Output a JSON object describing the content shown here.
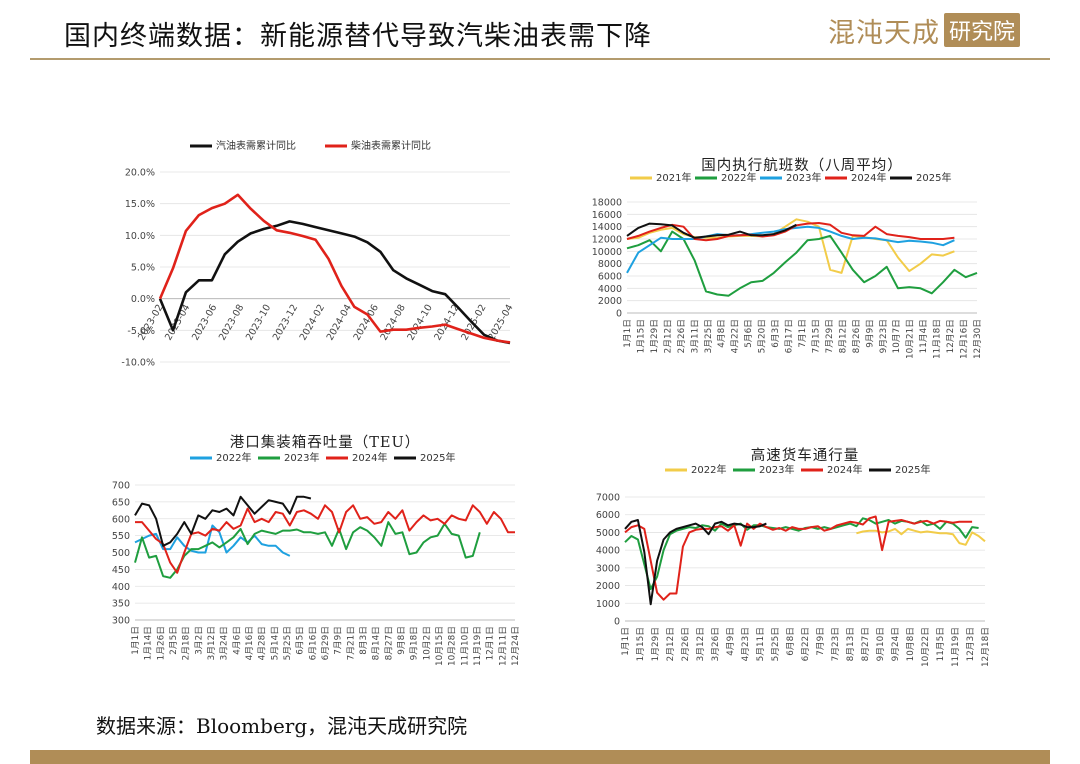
{
  "header": {
    "title": "国内终端数据：新能源替代导致汽柴油表需下降",
    "logo_text": "混沌天成",
    "logo_box_text": "研究院"
  },
  "source": "数据来源：Bloomberg，混沌天成研究院",
  "colors": {
    "gold": "#b08d57",
    "black": "#111111",
    "red": "#e0221a",
    "green": "#1f9e3f",
    "blue": "#1ea1e0",
    "yellow": "#f2cc49"
  },
  "chart_data": [
    {
      "type": "line",
      "title": "",
      "x": [
        "2023-02",
        "2023-03",
        "2023-04",
        "2023-05",
        "2023-06",
        "2023-07",
        "2023-08",
        "2023-09",
        "2023-10",
        "2023-11",
        "2023-12",
        "2024-01",
        "2024-02",
        "2024-03",
        "2024-04",
        "2024-05",
        "2024-06",
        "2024-07",
        "2024-08",
        "2024-09",
        "2024-10",
        "2024-11",
        "2024-12",
        "2025-01",
        "2025-02",
        "2025-03",
        "2025-04",
        "2025-05"
      ],
      "x_tick_labels": [
        "2023-02",
        "2023-04",
        "2023-06",
        "2023-08",
        "2023-10",
        "2023-12",
        "2024-02",
        "2024-04",
        "2024-06",
        "2024-08",
        "2024-10",
        "2024-12",
        "2025-02",
        "2025-04"
      ],
      "series": [
        {
          "name": "汽油表需累计同比",
          "color": "#111111",
          "values": [
            0.0,
            -5.0,
            1.0,
            2.9,
            2.9,
            7.0,
            9.0,
            10.3,
            11.0,
            11.5,
            12.2,
            11.8,
            11.3,
            10.8,
            10.3,
            9.8,
            8.9,
            7.4,
            4.5,
            3.2,
            2.2,
            1.2,
            0.7,
            -1.4,
            -3.6,
            -5.7,
            -6.6,
            -7.0
          ]
        },
        {
          "name": "柴油表需累计同比",
          "color": "#e0221a",
          "values": [
            0.0,
            4.8,
            10.7,
            13.2,
            14.3,
            15.0,
            16.4,
            14.2,
            12.3,
            10.8,
            10.4,
            9.9,
            9.3,
            6.3,
            2.0,
            -1.3,
            -2.5,
            -5.2,
            -4.9,
            -4.9,
            -4.6,
            -4.4,
            -4.1,
            -4.8,
            -5.5,
            -6.2,
            -6.6,
            -6.9
          ]
        }
      ],
      "y_tick_labels": [
        "20.0%",
        "15.0%",
        "10.0%",
        "5.0%",
        "0.0%",
        "-5.0%",
        "-10.0%"
      ],
      "ylim": [
        -10,
        20
      ],
      "legend": "top"
    },
    {
      "type": "line",
      "title": "国内执行航班数（八周平均）",
      "x_tick_labels": [
        "1月1日",
        "1月15日",
        "1月29日",
        "2月12日",
        "2月26日",
        "3月11日",
        "3月25日",
        "4月8日",
        "4月22日",
        "5月6日",
        "5月20日",
        "6月3日",
        "6月17日",
        "7月1日",
        "7月15日",
        "7月29日",
        "8月12日",
        "8月26日",
        "9月9日",
        "9月23日",
        "10月7日",
        "10月21日",
        "11月4日",
        "11月18日",
        "12月2日",
        "12月16日",
        "12月30日"
      ],
      "series": [
        {
          "name": "2021年",
          "color": "#f2cc49",
          "values": [
            12000,
            12200,
            13000,
            13500,
            13800,
            12800,
            12300,
            12200,
            12200,
            12400,
            12500,
            12500,
            12400,
            12800,
            14000,
            15200,
            14800,
            14000,
            7000,
            6500,
            12500,
            12300,
            12000,
            11800,
            9000,
            6800,
            8000,
            9500,
            9300,
            10000
          ]
        },
        {
          "name": "2022年",
          "color": "#1f9e3f",
          "values": [
            10500,
            11000,
            11800,
            10000,
            13200,
            12000,
            8500,
            3500,
            3000,
            2800,
            4000,
            5000,
            5200,
            6500,
            8200,
            9800,
            11800,
            12000,
            12500,
            9800,
            7000,
            5000,
            6000,
            7500,
            4000,
            4200,
            4000,
            3200,
            5000,
            7000,
            5800,
            6500
          ]
        },
        {
          "name": "2023年",
          "color": "#1ea1e0",
          "values": [
            6500,
            9800,
            11000,
            12200,
            12000,
            12000,
            12000,
            12400,
            12800,
            12600,
            12600,
            12800,
            13000,
            13200,
            13600,
            13800,
            14000,
            13800,
            13200,
            12500,
            12000,
            12200,
            12100,
            11800,
            11500,
            11700,
            11600,
            11400,
            11000,
            11800
          ]
        },
        {
          "name": "2024年",
          "color": "#e0221a",
          "values": [
            12000,
            12500,
            13200,
            13800,
            14300,
            14000,
            12000,
            11800,
            12000,
            12500,
            12600,
            12700,
            12400,
            12600,
            13200,
            14200,
            14500,
            14600,
            14300,
            13000,
            12600,
            12500,
            14000,
            12800,
            12500,
            12300,
            12000,
            12000,
            12000,
            12200
          ]
        },
        {
          "name": "2025年",
          "color": "#111111",
          "values": [
            12500,
            13800,
            14500,
            14400,
            14200,
            13000,
            12200,
            12400,
            12600,
            12700,
            13200,
            12600,
            12600,
            12800,
            13400,
            14300
          ]
        }
      ],
      "y_tick_labels": [
        "18000",
        "16000",
        "14000",
        "12000",
        "10000",
        "8000",
        "6000",
        "4000",
        "2000",
        "0"
      ],
      "ylim": [
        0,
        18000
      ],
      "legend": "top"
    },
    {
      "type": "line",
      "title": "港口集装箱吞吐量（TEU）",
      "x_tick_labels": [
        "1月1日",
        "1月14日",
        "1月26日",
        "2月5日",
        "2月18日",
        "3月2日",
        "3月12日",
        "3月24日",
        "4月6日",
        "4月16日",
        "4月28日",
        "5月14日",
        "5月25日",
        "6月5日",
        "6月16日",
        "6月29日",
        "7月9日",
        "7月21日",
        "8月3日",
        "8月14日",
        "8月27日",
        "9月8日",
        "9月18日",
        "10月2日",
        "10月15日",
        "10月28日",
        "11月10日",
        "11月19日",
        "12月1日",
        "12月11日",
        "12月24日"
      ],
      "series": [
        {
          "name": "2022年",
          "color": "#1ea1e0",
          "values": [
            530,
            540,
            550,
            555,
            510,
            510,
            545,
            520,
            505,
            500,
            500,
            580,
            560,
            500,
            520,
            545,
            530,
            550,
            525,
            520,
            520,
            500,
            490
          ]
        },
        {
          "name": "2023年",
          "color": "#1f9e3f",
          "values": [
            470,
            545,
            485,
            490,
            430,
            425,
            450,
            490,
            510,
            510,
            520,
            530,
            515,
            530,
            545,
            570,
            525,
            555,
            565,
            560,
            555,
            565,
            565,
            568,
            560,
            560,
            555,
            560,
            520,
            570,
            510,
            560,
            575,
            565,
            545,
            520,
            590,
            555,
            560,
            495,
            500,
            530,
            545,
            550,
            585,
            555,
            550,
            485,
            490,
            560
          ]
        },
        {
          "name": "2024年",
          "color": "#e0221a",
          "values": [
            590,
            590,
            565,
            540,
            525,
            470,
            440,
            500,
            555,
            560,
            550,
            570,
            565,
            590,
            570,
            580,
            630,
            590,
            600,
            590,
            620,
            615,
            580,
            620,
            625,
            615,
            600,
            640,
            620,
            560,
            620,
            640,
            600,
            605,
            585,
            590,
            620,
            600,
            625,
            565,
            590,
            610,
            595,
            600,
            585,
            610,
            600,
            595,
            640,
            620,
            585,
            620,
            600,
            560,
            560
          ]
        },
        {
          "name": "2025年",
          "color": "#111111",
          "values": [
            610,
            645,
            640,
            600,
            520,
            530,
            555,
            590,
            555,
            610,
            600,
            625,
            620,
            630,
            610,
            665,
            640,
            615,
            635,
            655,
            650,
            645,
            615,
            665,
            665,
            660
          ]
        }
      ],
      "y_tick_labels": [
        "700",
        "650",
        "600",
        "550",
        "500",
        "450",
        "400",
        "350",
        "300"
      ],
      "ylim": [
        300,
        700
      ],
      "legend": "top"
    },
    {
      "type": "line",
      "title": "高速货车通行量",
      "x_tick_labels": [
        "1月1日",
        "1月15日",
        "1月29日",
        "2月12日",
        "2月26日",
        "3月12日",
        "3月26日",
        "4月9日",
        "4月23日",
        "5月11日",
        "5月25日",
        "6月8日",
        "6月22日",
        "7月9日",
        "7月23日",
        "8月13日",
        "8月27日",
        "9月10日",
        "9月24日",
        "10月8日",
        "10月22日",
        "11月5日",
        "11月19日",
        "12月3日",
        "12月18日"
      ],
      "series": [
        {
          "name": "2022年",
          "color": "#f2cc49",
          "values": [
            null,
            null,
            null,
            null,
            null,
            null,
            null,
            null,
            null,
            null,
            null,
            null,
            null,
            null,
            null,
            null,
            null,
            null,
            null,
            null,
            null,
            null,
            null,
            null,
            null,
            null,
            null,
            null,
            null,
            null,
            null,
            null,
            null,
            null,
            null,
            null,
            4950,
            5050,
            5100,
            5100,
            5000,
            5050,
            5200,
            4900,
            5200,
            5100,
            5000,
            5050,
            5000,
            4950,
            4950,
            4900,
            4400,
            4300,
            5000,
            4800,
            4500
          ]
        },
        {
          "name": "2023年",
          "color": "#1f9e3f",
          "values": [
            4450,
            4800,
            4600,
            3200,
            1800,
            2500,
            4000,
            4900,
            5100,
            5200,
            5300,
            5250,
            5400,
            5350,
            5100,
            5500,
            5300,
            5400,
            5500,
            5150,
            5400,
            5400,
            5300,
            5250,
            5200,
            5300,
            5200,
            5100,
            5250,
            5300,
            5200,
            5300,
            5200,
            5300,
            5400,
            5500,
            5350,
            5800,
            5700,
            5500,
            5600,
            5700,
            5500,
            5650,
            5600,
            5500,
            5650,
            5400,
            5500,
            5200,
            5600,
            5500,
            5200,
            4700,
            5300,
            5250
          ]
        },
        {
          "name": "2024年",
          "color": "#e0221a",
          "values": [
            5000,
            5300,
            5400,
            5200,
            3400,
            1600,
            1200,
            1550,
            1550,
            4200,
            5000,
            5150,
            5200,
            5200,
            5300,
            5350,
            5100,
            5400,
            4250,
            5500,
            5200,
            5500,
            5300,
            5150,
            5250,
            5100,
            5300,
            5200,
            5200,
            5300,
            5350,
            5100,
            5200,
            5400,
            5500,
            5600,
            5550,
            5450,
            5800,
            5900,
            4000,
            5600,
            5650,
            5700,
            5600,
            5500,
            5600,
            5650,
            5500,
            5650,
            5600,
            5550,
            5600,
            5600,
            5600
          ]
        },
        {
          "name": "2025年",
          "color": "#111111",
          "values": [
            5200,
            5600,
            5700,
            3900,
            950,
            3400,
            4600,
            5000,
            5200,
            5300,
            5400,
            5500,
            5300,
            4900,
            5500,
            5600,
            5400,
            5500,
            5450,
            5300,
            5300,
            5350,
            5500
          ]
        }
      ],
      "y_tick_labels": [
        "7000",
        "6000",
        "5000",
        "4000",
        "3000",
        "2000",
        "1000",
        "0"
      ],
      "ylim": [
        0,
        7000
      ],
      "legend": "top"
    }
  ]
}
